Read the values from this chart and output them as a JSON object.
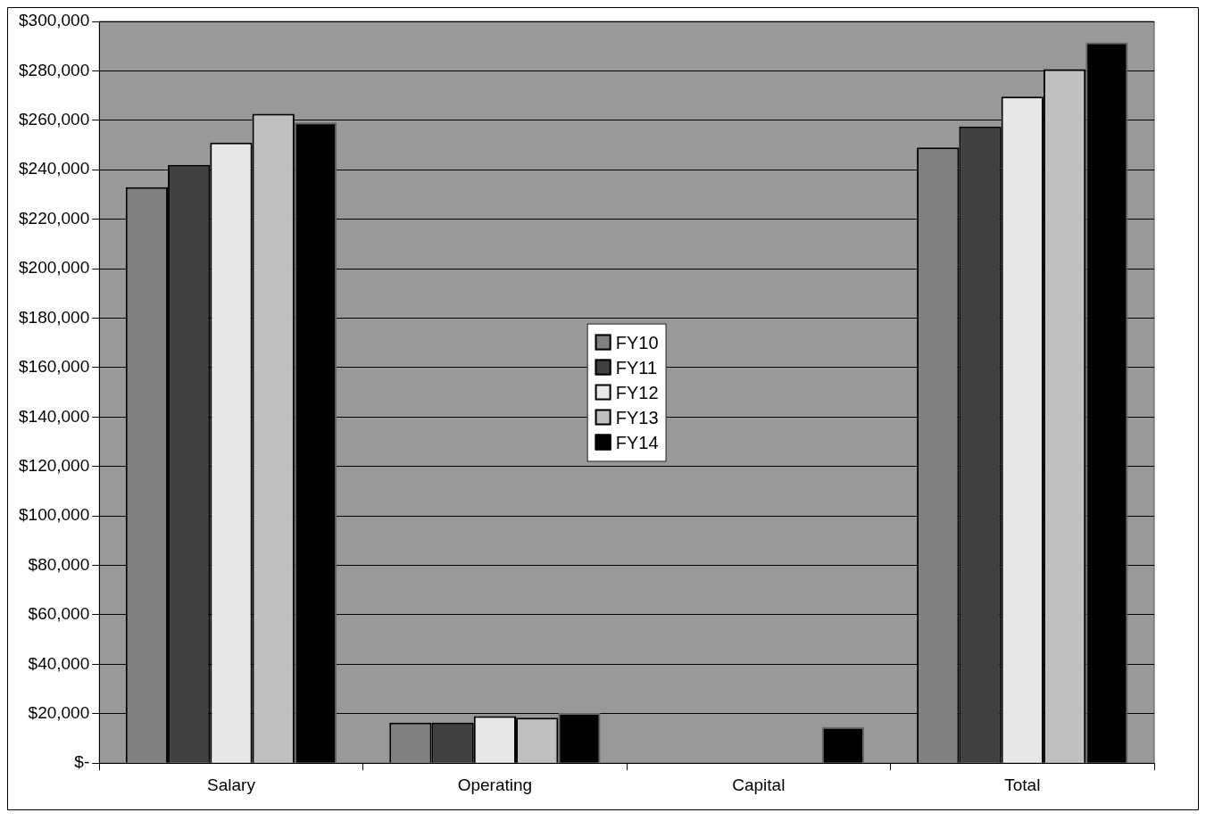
{
  "chart_data": {
    "type": "bar",
    "categories": [
      "Salary",
      "Operating",
      "Capital",
      "Total"
    ],
    "series": [
      {
        "name": "FY10",
        "color": "#808080",
        "values": [
          233000,
          16400,
          0,
          249000
        ]
      },
      {
        "name": "FY11",
        "color": "#404040",
        "values": [
          242000,
          16400,
          0,
          257500
        ]
      },
      {
        "name": "FY12",
        "color": "#e8e8e8",
        "values": [
          251000,
          19000,
          0,
          269600
        ]
      },
      {
        "name": "FY13",
        "color": "#c0c0c0",
        "values": [
          262600,
          18400,
          0,
          280700
        ]
      },
      {
        "name": "FY14",
        "color": "#000000",
        "values": [
          259100,
          20300,
          14600,
          291500
        ]
      }
    ],
    "ylim": [
      0,
      300000
    ],
    "yticks": [
      {
        "value": 0,
        "label": "$-"
      },
      {
        "value": 20000,
        "label": "$20,000"
      },
      {
        "value": 40000,
        "label": "$40,000"
      },
      {
        "value": 60000,
        "label": "$60,000"
      },
      {
        "value": 80000,
        "label": "$80,000"
      },
      {
        "value": 100000,
        "label": "$100,000"
      },
      {
        "value": 120000,
        "label": "$120,000"
      },
      {
        "value": 140000,
        "label": "$140,000"
      },
      {
        "value": 160000,
        "label": "$160,000"
      },
      {
        "value": 180000,
        "label": "$180,000"
      },
      {
        "value": 200000,
        "label": "$200,000"
      },
      {
        "value": 220000,
        "label": "$220,000"
      },
      {
        "value": 240000,
        "label": "$240,000"
      },
      {
        "value": 260000,
        "label": "$260,000"
      },
      {
        "value": 280000,
        "label": "$280,000"
      },
      {
        "value": 300000,
        "label": "$300,000"
      }
    ],
    "grid": "y",
    "legend": "center"
  }
}
